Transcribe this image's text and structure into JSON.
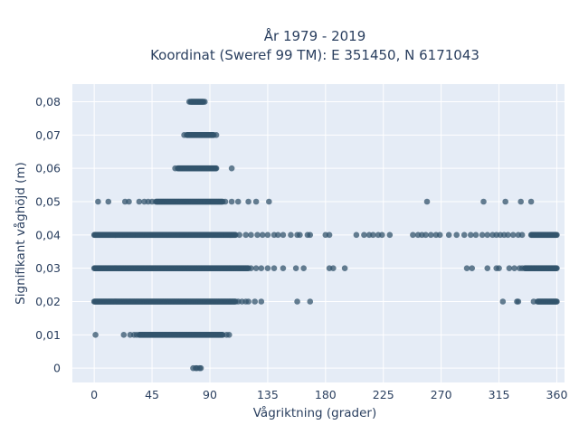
{
  "chart_data": {
    "type": "scatter",
    "title": [
      "År 1979 - 2019",
      "Koordinat (Sweref 99 TM): E 351450, N 6171043"
    ],
    "xlabel": "Vågriktning (grader)",
    "ylabel": "Signifikant våghöjd (m)",
    "xlim": [
      -17,
      366
    ],
    "ylim": [
      -0.0043,
      0.0853
    ],
    "x_ticks": [
      0,
      45,
      90,
      135,
      180,
      225,
      270,
      315,
      360
    ],
    "x_tick_labels": [
      "0",
      "45",
      "90",
      "135",
      "180",
      "225",
      "270",
      "315",
      "360"
    ],
    "y_ticks": [
      0,
      0.01,
      0.02,
      0.03,
      0.04,
      0.05,
      0.06,
      0.07,
      0.08
    ],
    "y_tick_labels": [
      "0",
      "0,01",
      "0,02",
      "0,03",
      "0,04",
      "0,05",
      "0,06",
      "0,07",
      "0,08"
    ],
    "grid": true,
    "marker_color": "#33546c",
    "plot_background": "#e5ecf6",
    "points": [
      {
        "y": 0.08,
        "x_dense": [
          [
            75,
            85
          ]
        ],
        "x_scatter": [
          74,
          86
        ]
      },
      {
        "y": 0.07,
        "x_dense": [
          [
            72,
            93
          ]
        ],
        "x_scatter": [
          70,
          95
        ]
      },
      {
        "y": 0.06,
        "x_dense": [
          [
            65,
            95
          ]
        ],
        "x_scatter": [
          63,
          107
        ]
      },
      {
        "y": 0.05,
        "x_dense": [
          [
            48,
            100
          ]
        ],
        "x_scatter": [
          3,
          11,
          24,
          27,
          35,
          39,
          42,
          45,
          102,
          107,
          112,
          120,
          126,
          136,
          259,
          303,
          320,
          332,
          340
        ]
      },
      {
        "y": 0.04,
        "x_dense": [
          [
            0,
            110
          ],
          [
            340,
            360
          ]
        ],
        "x_scatter": [
          113,
          118,
          122,
          127,
          131,
          135,
          140,
          143,
          147,
          153,
          158,
          160,
          166,
          168,
          180,
          183,
          204,
          210,
          214,
          217,
          221,
          224,
          230,
          248,
          252,
          255,
          258,
          262,
          266,
          269,
          276,
          282,
          288,
          293,
          297,
          302,
          306,
          310,
          313,
          316,
          319,
          322,
          326,
          330,
          333
        ]
      },
      {
        "y": 0.03,
        "x_dense": [
          [
            0,
            120
          ],
          [
            335,
            360
          ]
        ],
        "x_scatter": [
          122,
          126,
          130,
          135,
          140,
          147,
          157,
          163,
          183,
          186,
          195,
          290,
          294,
          306,
          313,
          315,
          323,
          327,
          331,
          333
        ]
      },
      {
        "y": 0.02,
        "x_dense": [
          [
            0,
            110
          ],
          [
            345,
            360
          ]
        ],
        "x_scatter": [
          112,
          115,
          118,
          120,
          125,
          130,
          158,
          168,
          318,
          329,
          330,
          342
        ]
      },
      {
        "y": 0.01,
        "x_dense": [
          [
            35,
            100
          ]
        ],
        "x_scatter": [
          1,
          23,
          28,
          31,
          33,
          103,
          105
        ]
      },
      {
        "y": 0.0,
        "x_dense": [],
        "x_scatter": [
          77,
          79,
          80,
          82,
          83
        ]
      }
    ]
  }
}
